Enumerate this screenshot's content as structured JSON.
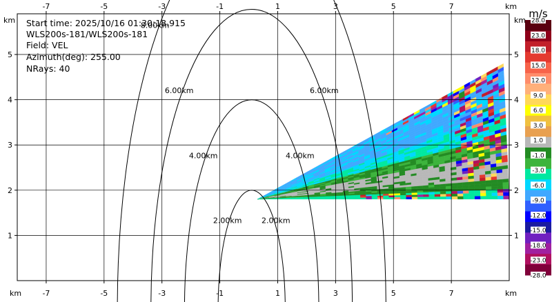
{
  "chart_data": {
    "type": "heatmap",
    "info_lines": [
      "Start time: 2025/10/16 01:30:18.915",
      "WLS200s-181/WLS200s-181",
      "Field: VEL",
      "Azimuth(deg): 255.00",
      "NRays: 40"
    ],
    "x_unit": "km",
    "y_unit": "km",
    "xlim": [
      -8,
      9
    ],
    "ylim": [
      0,
      5.9
    ],
    "x_ticks": [
      "-7",
      "-5",
      "-3",
      "-1",
      "1",
      "3",
      "5",
      "7"
    ],
    "y_ticks": [
      "1",
      "2",
      "3",
      "4",
      "5"
    ],
    "x_tick_values": [
      -7,
      -5,
      -3,
      -1,
      1,
      3,
      5,
      7
    ],
    "y_tick_values": [
      1,
      2,
      3,
      4,
      5
    ],
    "grid": true,
    "range_rings": [
      {
        "radius_km": 2,
        "labels": [
          "2.00km",
          "2.00km"
        ]
      },
      {
        "radius_km": 4,
        "labels": [
          "4.00km",
          "4.00km"
        ]
      },
      {
        "radius_km": 6,
        "labels": [
          "6.00km",
          "6.00km"
        ]
      },
      {
        "radius_km": 8,
        "labels": [
          "8.00km"
        ]
      }
    ],
    "ring_center_km": [
      0.1,
      0
    ],
    "ring_aspect": 0.58,
    "sector": {
      "apex_km": [
        0.3,
        1.8
      ],
      "azimuth_start_deg": 255,
      "n_rays": 40,
      "range_km": [
        0.1,
        8.9
      ],
      "upper_edge_end_km": [
        8.8,
        4.8
      ],
      "lower_edge_end_km": [
        9.0,
        1.8
      ]
    },
    "colorbar": {
      "unit": "m/s",
      "ticks": [
        "28.0",
        "23.0",
        "18.0",
        "15.0",
        "12.0",
        "9.0",
        "6.0",
        "3.0",
        "1.0",
        "-1.0",
        "-3.0",
        "-6.0",
        "-9.0",
        "-12.0",
        "-15.0",
        "-18.0",
        "-23.0",
        "-28.0"
      ],
      "colors": [
        "#5a0010",
        "#8e001a",
        "#c21f2a",
        "#e43a30",
        "#f7634a",
        "#ff8c6a",
        "#ffb07a",
        "#ffd85a",
        "#ffff00",
        "#f0c040",
        "#e8a050",
        "#b8b8b8",
        "#238b23",
        "#3cb43c",
        "#00e8a0",
        "#00d8ff",
        "#40a8ff",
        "#3060ff",
        "#0000ff",
        "#1a1aa0",
        "#7020c0",
        "#a020a0",
        "#b01060",
        "#80003a"
      ]
    }
  }
}
